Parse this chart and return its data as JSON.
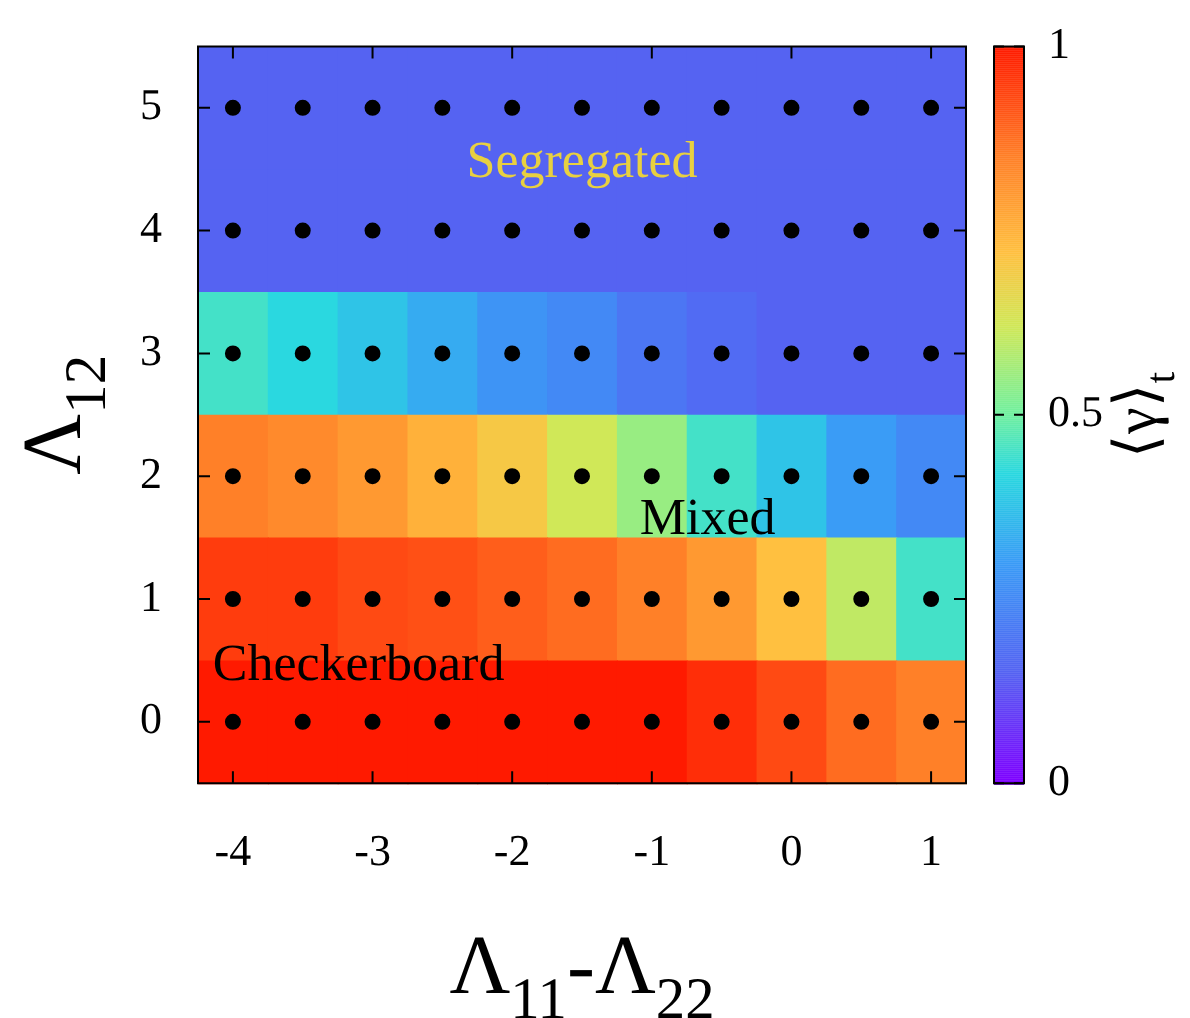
{
  "chart_data": {
    "type": "heatmap",
    "xlabel": "Λ$_{11}$-Λ$_{22}$",
    "ylabel": "Λ$_{12}$",
    "clabel": "⟨γ⟩$_{t}$",
    "categories": [
      "-4",
      null,
      "-3",
      null,
      "-2",
      null,
      "-1",
      null,
      "0",
      null,
      "1"
    ],
    "y_categories": [
      "5",
      "4",
      "3",
      "2",
      "1",
      "0"
    ],
    "cells": [
      [
        0.15,
        0.15,
        0.15,
        0.15,
        0.15,
        0.15,
        0.15,
        0.15,
        0.15,
        0.15,
        0.15
      ],
      [
        0.15,
        0.15,
        0.15,
        0.15,
        0.15,
        0.15,
        0.15,
        0.15,
        0.15,
        0.15,
        0.15
      ],
      [
        0.45,
        0.42,
        0.38,
        0.33,
        0.28,
        0.25,
        0.2,
        0.17,
        0.15,
        0.15,
        0.15
      ],
      [
        0.85,
        0.83,
        0.8,
        0.75,
        0.7,
        0.62,
        0.55,
        0.45,
        0.38,
        0.3,
        0.25
      ],
      [
        0.95,
        0.95,
        0.93,
        0.92,
        0.9,
        0.88,
        0.85,
        0.8,
        0.72,
        0.6,
        0.45
      ],
      [
        1,
        1,
        1,
        1,
        1,
        1,
        1,
        0.97,
        0.93,
        0.88,
        0.85
      ]
    ],
    "clim": [
      0,
      1
    ],
    "cticks": [
      0,
      0.5,
      1
    ],
    "series": [
      {
        "type": "scatter",
        "color": "#000000",
        "marker": "circle",
        "values": [
          0,
          0,
          0,
          0,
          0,
          0,
          0,
          0,
          0,
          0,
          0
        ]
      },
      {
        "type": "scatter",
        "color": "#000000",
        "marker": "circle",
        "values": [
          1,
          1,
          1,
          1,
          1,
          1,
          1,
          1,
          1,
          1,
          1
        ]
      },
      {
        "type": "scatter",
        "color": "#000000",
        "marker": "circle",
        "values": [
          2,
          2,
          2,
          2,
          2,
          2,
          2,
          2,
          2,
          2,
          2
        ]
      },
      {
        "type": "scatter",
        "color": "#000000",
        "marker": "circle",
        "values": [
          3,
          3,
          3,
          3,
          3,
          3,
          3,
          3,
          3,
          3,
          3
        ]
      },
      {
        "type": "scatter",
        "color": "#000000",
        "marker": "circle",
        "values": [
          4,
          4,
          4,
          4,
          4,
          4,
          4,
          4,
          4,
          4,
          4
        ]
      },
      {
        "type": "scatter",
        "color": "#000000",
        "marker": "circle",
        "values": [
          5,
          5,
          5,
          5,
          5,
          5,
          5,
          5,
          5,
          5,
          5
        ]
      }
    ],
    "annotations": [
      "Segregated",
      "Mixed",
      "Checkerboard"
    ]
  }
}
